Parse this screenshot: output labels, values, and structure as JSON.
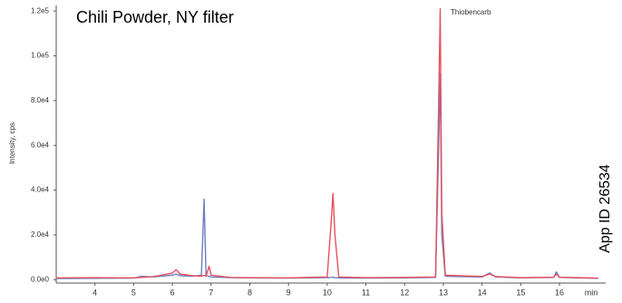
{
  "chart_data": {
    "type": "line",
    "title": "Chili Powder, NY filter",
    "ylabel": "Intensity, cps",
    "xlabel": "min",
    "annotations": [
      "Thiobencarb",
      "App ID 26534"
    ],
    "x": [
      3.0,
      4.0,
      5.0,
      5.2,
      5.5,
      6.0,
      6.1,
      6.2,
      6.5,
      6.75,
      6.82,
      6.87,
      6.95,
      7.0,
      7.5,
      8.0,
      9.0,
      10.0,
      10.1,
      10.15,
      10.2,
      10.3,
      11.0,
      12.0,
      12.8,
      12.88,
      12.92,
      12.96,
      13.05,
      14.0,
      14.2,
      14.35,
      15.0,
      15.85,
      15.92,
      16.0,
      17.0
    ],
    "series": [
      {
        "color": "#6a7fc0",
        "values": [
          500,
          600,
          700,
          1500,
          1200,
          2000,
          2500,
          1800,
          1500,
          2000,
          36000,
          2000,
          1500,
          1200,
          900,
          800,
          700,
          900,
          1000,
          1100,
          900,
          800,
          700,
          800,
          1000,
          60000,
          92000,
          20000,
          1500,
          1200,
          3000,
          1200,
          800,
          1000,
          3500,
          1000,
          600
        ]
      },
      {
        "color": "#e8505f",
        "values": [
          800,
          900,
          800,
          1000,
          1300,
          3000,
          4500,
          2500,
          1800,
          1500,
          2000,
          1600,
          6000,
          2000,
          1000,
          900,
          800,
          1200,
          25000,
          38500,
          20000,
          1200,
          900,
          1000,
          1200,
          80000,
          121000,
          30000,
          2000,
          1400,
          2500,
          1400,
          900,
          1100,
          2500,
          1100,
          700
        ]
      }
    ],
    "xlim": [
      3,
      17.1
    ],
    "ylim": [
      -1500,
      122500
    ],
    "xticks": [
      4,
      5,
      6,
      7,
      8,
      9,
      10,
      11,
      12,
      13,
      14,
      15,
      16
    ],
    "yticks": [
      {
        "value": 0,
        "label": "0.0e0"
      },
      {
        "value": 20000,
        "label": "2.0e4"
      },
      {
        "value": 40000,
        "label": "4.0e4"
      },
      {
        "value": 60000,
        "label": "6.0e4"
      },
      {
        "value": 80000,
        "label": "8.0e4"
      },
      {
        "value": 100000,
        "label": "1.0e5"
      },
      {
        "value": 120000,
        "label": "1.2e5"
      }
    ]
  }
}
